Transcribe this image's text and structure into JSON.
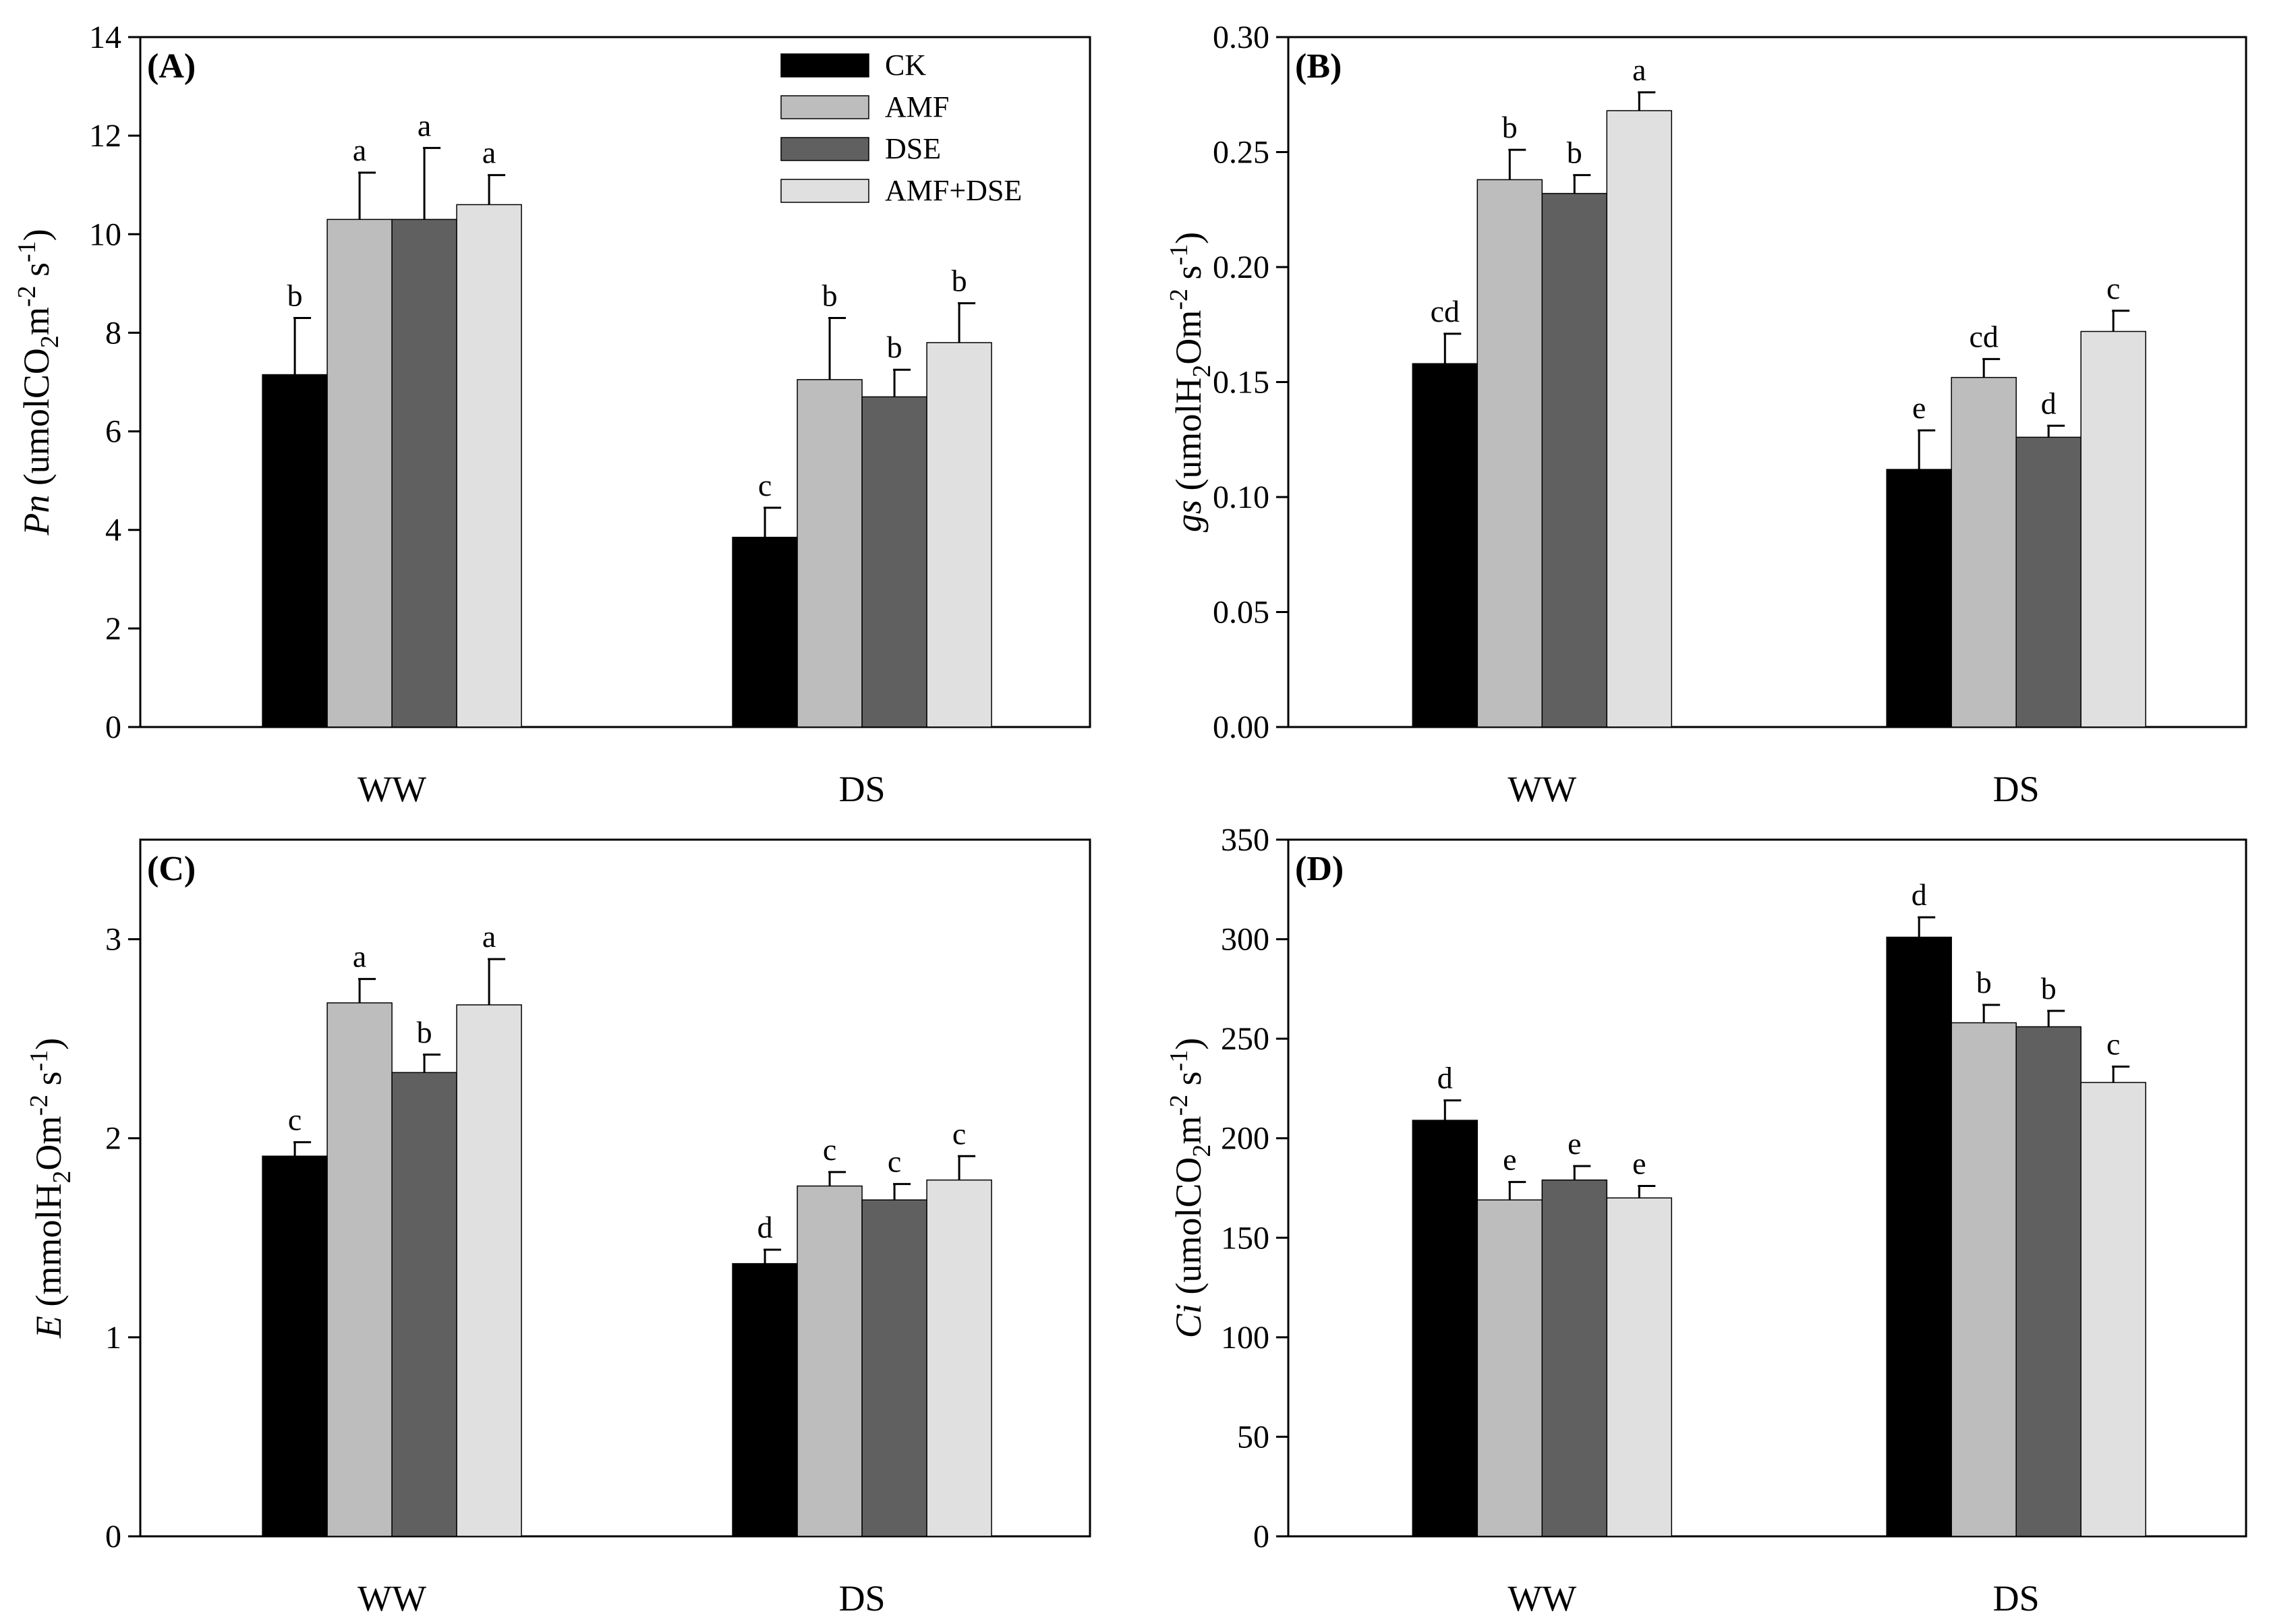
{
  "figure": {
    "legend": [
      {
        "name": "CK",
        "color": "#000000"
      },
      {
        "name": "AMF",
        "color": "#bdbdbd"
      },
      {
        "name": "DSE",
        "color": "#606060"
      },
      {
        "name": "AMF+DSE",
        "color": "#e0e0e0"
      }
    ]
  },
  "chart_data": [
    {
      "type": "bar",
      "panel_label": "(A)",
      "ylabel": {
        "italic": "Pn",
        "pre": " (umolCO",
        "sub": "2",
        "mid": "m",
        "sup1": "-2",
        "mid2": " s",
        "sup2": "-1",
        "post": ")"
      },
      "categories": [
        "WW",
        "DS"
      ],
      "ylim": [
        0,
        14
      ],
      "yticks": [
        0,
        2,
        4,
        6,
        8,
        10,
        12,
        14
      ],
      "ytick_labels": [
        "0",
        "2",
        "4",
        "6",
        "8",
        "10",
        "12",
        "14"
      ],
      "series": [
        {
          "name": "CK",
          "values": [
            7.15,
            3.85
          ],
          "errors": [
            1.15,
            0.6
          ],
          "letters": [
            "b",
            "c"
          ]
        },
        {
          "name": "AMF",
          "values": [
            10.3,
            7.05
          ],
          "errors": [
            0.95,
            1.25
          ],
          "letters": [
            "a",
            "b"
          ]
        },
        {
          "name": "DSE",
          "values": [
            10.3,
            6.7
          ],
          "errors": [
            1.45,
            0.55
          ],
          "letters": [
            "a",
            "b"
          ]
        },
        {
          "name": "AMF+DSE",
          "values": [
            10.6,
            7.8
          ],
          "errors": [
            0.6,
            0.8
          ],
          "letters": [
            "a",
            "b"
          ]
        }
      ],
      "legend_position": "top-center"
    },
    {
      "type": "bar",
      "panel_label": "(B)",
      "ylabel": {
        "italic": "gs",
        "pre": " (umolH",
        "sub": "2",
        "mid": "Om",
        "sup1": "-2",
        "mid2": " s",
        "sup2": "-1",
        "post": ")"
      },
      "categories": [
        "WW",
        "DS"
      ],
      "ylim": [
        0,
        0.3
      ],
      "yticks": [
        0,
        0.05,
        0.1,
        0.15,
        0.2,
        0.25,
        0.3
      ],
      "ytick_labels": [
        "0.00",
        "0.05",
        "0.10",
        "0.15",
        "0.20",
        "0.25",
        "0.30"
      ],
      "series": [
        {
          "name": "CK",
          "values": [
            0.158,
            0.112
          ],
          "errors": [
            0.013,
            0.017
          ],
          "letters": [
            "cd",
            "e"
          ]
        },
        {
          "name": "AMF",
          "values": [
            0.238,
            0.152
          ],
          "errors": [
            0.013,
            0.008
          ],
          "letters": [
            "b",
            "cd"
          ]
        },
        {
          "name": "DSE",
          "values": [
            0.232,
            0.126
          ],
          "errors": [
            0.008,
            0.005
          ],
          "letters": [
            "b",
            "d"
          ]
        },
        {
          "name": "AMF+DSE",
          "values": [
            0.268,
            0.172
          ],
          "errors": [
            0.008,
            0.009
          ],
          "letters": [
            "a",
            "c"
          ]
        }
      ]
    },
    {
      "type": "bar",
      "panel_label": "(C)",
      "ylabel": {
        "italic": "E",
        "pre": " (mmolH",
        "sub": "2",
        "mid": "Om",
        "sup1": "-2",
        "mid2": " s",
        "sup2": "-1",
        "post": ")"
      },
      "categories": [
        "WW",
        "DS"
      ],
      "ylim": [
        0,
        3.5
      ],
      "yticks": [
        0,
        1,
        2,
        3
      ],
      "ytick_labels": [
        "0",
        "1",
        "2",
        "3"
      ],
      "series": [
        {
          "name": "CK",
          "values": [
            1.91,
            1.37
          ],
          "errors": [
            0.07,
            0.07
          ],
          "letters": [
            "c",
            "d"
          ]
        },
        {
          "name": "AMF",
          "values": [
            2.68,
            1.76
          ],
          "errors": [
            0.12,
            0.07
          ],
          "letters": [
            "a",
            "c"
          ]
        },
        {
          "name": "DSE",
          "values": [
            2.33,
            1.69
          ],
          "errors": [
            0.09,
            0.08
          ],
          "letters": [
            "b",
            "c"
          ]
        },
        {
          "name": "AMF+DSE",
          "values": [
            2.67,
            1.79
          ],
          "errors": [
            0.23,
            0.12
          ],
          "letters": [
            "a",
            "c"
          ]
        }
      ]
    },
    {
      "type": "bar",
      "panel_label": "(D)",
      "ylabel": {
        "italic": "Ci",
        "pre": " (umolCO",
        "sub": "2",
        "mid": "m",
        "sup1": "-2",
        "mid2": " s",
        "sup2": "-1",
        "post": ")"
      },
      "categories": [
        "WW",
        "DS"
      ],
      "ylim": [
        0,
        350
      ],
      "yticks": [
        0,
        50,
        100,
        150,
        200,
        250,
        300,
        350
      ],
      "ytick_labels": [
        "0",
        "50",
        "100",
        "150",
        "200",
        "250",
        "300",
        "350"
      ],
      "series": [
        {
          "name": "CK",
          "values": [
            209,
            301
          ],
          "errors": [
            10,
            10
          ],
          "letters": [
            "d",
            "d"
          ]
        },
        {
          "name": "AMF",
          "values": [
            169,
            258
          ],
          "errors": [
            9,
            9
          ],
          "letters": [
            "e",
            "b"
          ]
        },
        {
          "name": "DSE",
          "values": [
            179,
            256
          ],
          "errors": [
            7,
            8
          ],
          "letters": [
            "e",
            "b"
          ]
        },
        {
          "name": "AMF+DSE",
          "values": [
            170,
            228
          ],
          "errors": [
            6,
            8
          ],
          "letters": [
            "e",
            "c"
          ]
        }
      ]
    }
  ]
}
